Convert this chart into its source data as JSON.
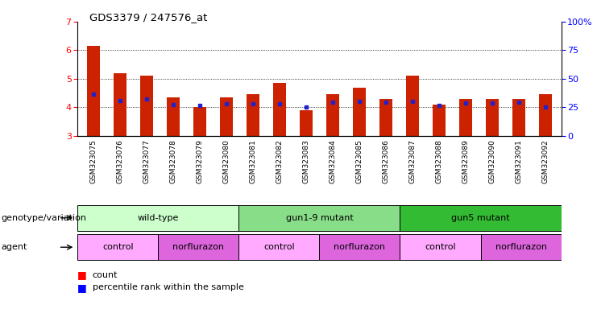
{
  "title": "GDS3379 / 247576_at",
  "samples": [
    "GSM323075",
    "GSM323076",
    "GSM323077",
    "GSM323078",
    "GSM323079",
    "GSM323080",
    "GSM323081",
    "GSM323082",
    "GSM323083",
    "GSM323084",
    "GSM323085",
    "GSM323086",
    "GSM323087",
    "GSM323088",
    "GSM323089",
    "GSM323090",
    "GSM323091",
    "GSM323092"
  ],
  "count_values": [
    6.15,
    5.2,
    5.1,
    4.35,
    4.0,
    4.35,
    4.45,
    4.85,
    3.9,
    4.45,
    4.7,
    4.3,
    5.1,
    4.1,
    4.3,
    4.3,
    4.3,
    4.45
  ],
  "percentile_values": [
    4.47,
    4.24,
    4.28,
    4.1,
    4.07,
    4.13,
    4.13,
    4.13,
    4.01,
    4.18,
    4.22,
    4.18,
    4.22,
    4.07,
    4.16,
    4.16,
    4.19,
    4.0
  ],
  "y_min": 3.0,
  "y_max": 7.0,
  "y_left_ticks": [
    3,
    4,
    5,
    6,
    7
  ],
  "y_right_ticks": [
    0,
    25,
    50,
    75,
    100
  ],
  "y_right_labels": [
    "0",
    "25",
    "50",
    "75",
    "100%"
  ],
  "bar_color": "#cc2200",
  "percentile_color": "#2222cc",
  "plot_bg_color": "#ffffff",
  "fig_bg_color": "#ffffff",
  "genotype_groups": [
    {
      "label": "wild-type",
      "start": 0,
      "end": 5,
      "color": "#ccffcc"
    },
    {
      "label": "gun1-9 mutant",
      "start": 6,
      "end": 11,
      "color": "#88dd88"
    },
    {
      "label": "gun5 mutant",
      "start": 12,
      "end": 17,
      "color": "#33bb33"
    }
  ],
  "agent_groups": [
    {
      "label": "control",
      "start": 0,
      "end": 2,
      "color": "#ffaaff"
    },
    {
      "label": "norflurazon",
      "start": 3,
      "end": 5,
      "color": "#dd66dd"
    },
    {
      "label": "control",
      "start": 6,
      "end": 8,
      "color": "#ffaaff"
    },
    {
      "label": "norflurazon",
      "start": 9,
      "end": 11,
      "color": "#dd66dd"
    },
    {
      "label": "control",
      "start": 12,
      "end": 14,
      "color": "#ffaaff"
    },
    {
      "label": "norflurazon",
      "start": 15,
      "end": 17,
      "color": "#dd66dd"
    }
  ],
  "genotype_label": "genotype/variation",
  "agent_label": "agent",
  "legend_count": "count",
  "legend_percentile": "percentile rank within the sample",
  "xtick_bg": "#dddddd"
}
